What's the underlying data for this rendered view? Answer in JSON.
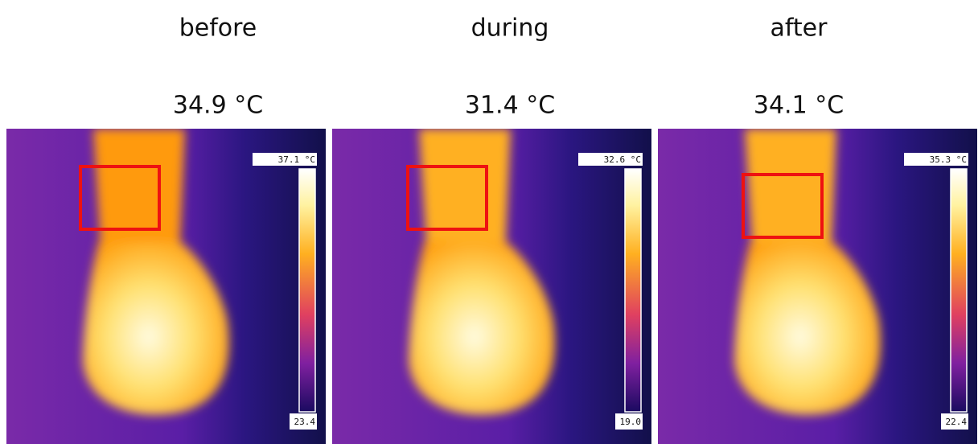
{
  "panels": [
    {
      "label": "before",
      "temperature": "34.9 °C",
      "scale_max": "37.1 °C",
      "scale_min": "23.4"
    },
    {
      "label": "during",
      "temperature": "31.4 °C",
      "scale_max": "32.6 °C",
      "scale_min": "19.0"
    },
    {
      "label": "after",
      "temperature": "34.1 °C",
      "scale_max": "35.3 °C",
      "scale_min": "22.4"
    }
  ]
}
